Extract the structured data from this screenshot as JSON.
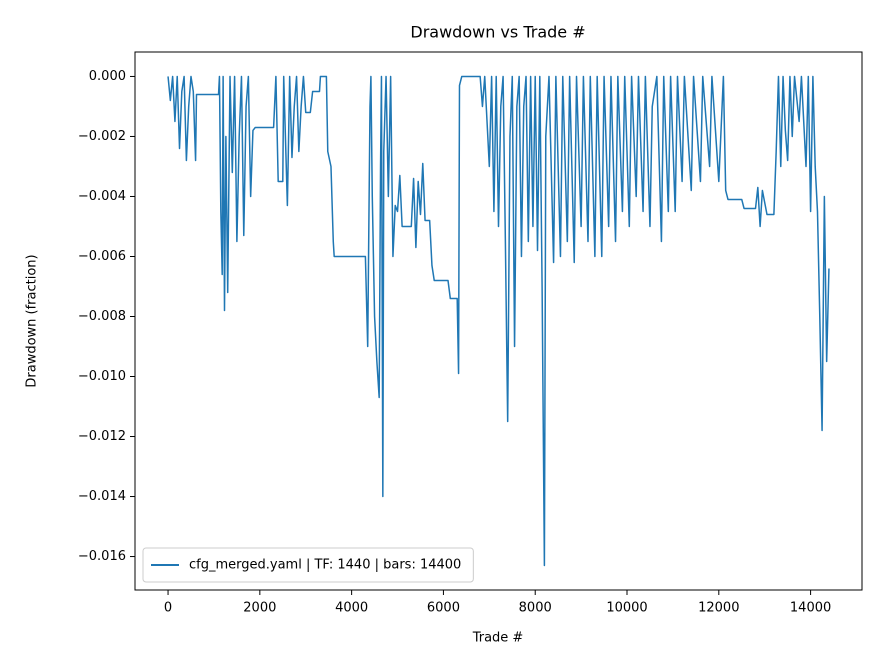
{
  "chart_data": {
    "type": "line",
    "title": "Drawdown vs Trade #",
    "xlabel": "Trade #",
    "ylabel": "Drawdown (fraction)",
    "x": [
      0,
      50,
      100,
      150,
      200,
      250,
      300,
      350,
      400,
      450,
      500,
      550,
      600,
      620,
      1100,
      1120,
      1150,
      1180,
      1200,
      1230,
      1260,
      1300,
      1350,
      1400,
      1450,
      1500,
      1550,
      1600,
      1650,
      1700,
      1750,
      1800,
      1850,
      1900,
      2300,
      2350,
      2400,
      2500,
      2520,
      2600,
      2650,
      2700,
      2750,
      2800,
      2850,
      2900,
      2950,
      3000,
      3100,
      3150,
      3300,
      3320,
      3450,
      3480,
      3550,
      3600,
      3620,
      4300,
      4350,
      4400,
      4420,
      4450,
      4500,
      4550,
      4600,
      4630,
      4650,
      4680,
      4700,
      4750,
      4800,
      4850,
      4900,
      4950,
      5000,
      5050,
      5100,
      5300,
      5350,
      5400,
      5450,
      5500,
      5550,
      5600,
      5700,
      5750,
      5800,
      6100,
      6150,
      6300,
      6330,
      6350,
      6400,
      6800,
      6850,
      6900,
      7000,
      7050,
      7100,
      7150,
      7200,
      7250,
      7300,
      7350,
      7400,
      7450,
      7500,
      7550,
      7600,
      7650,
      7700,
      7750,
      7800,
      7850,
      7900,
      7950,
      8000,
      8050,
      8100,
      8150,
      8200,
      8230,
      8300,
      8400,
      8450,
      8550,
      8600,
      8700,
      8750,
      8850,
      8900,
      9000,
      9050,
      9150,
      9200,
      9300,
      9350,
      9450,
      9500,
      9600,
      9650,
      9750,
      9800,
      9900,
      9950,
      10050,
      10100,
      10200,
      10250,
      10350,
      10400,
      10500,
      10550,
      10650,
      10750,
      10800,
      10900,
      10950,
      11050,
      11100,
      11200,
      11250,
      11400,
      11450,
      11600,
      11650,
      11800,
      11850,
      12000,
      12100,
      12150,
      12200,
      12500,
      12550,
      12800,
      12850,
      12900,
      12950,
      13050,
      13200,
      13250,
      13300,
      13350,
      13400,
      13450,
      13500,
      13550,
      13600,
      13650,
      13750,
      13800,
      13900,
      13950,
      14000,
      14050,
      14100,
      14150,
      14200,
      14250,
      14300,
      14350,
      14400
    ],
    "series": [
      {
        "name": "cfg_merged.yaml | TF: 1440 | bars: 14400",
        "color": "#1f77b4",
        "values": [
          0,
          -0.0008,
          0,
          -0.0015,
          0,
          -0.0024,
          -0.0005,
          0,
          -0.0028,
          -0.001,
          0,
          -0.0005,
          -0.0028,
          -0.0006,
          -0.0006,
          0,
          -0.0045,
          -0.0066,
          0,
          -0.0078,
          -0.002,
          -0.0072,
          0,
          -0.0032,
          0,
          -0.0055,
          -0.002,
          0,
          -0.0053,
          -0.001,
          0,
          -0.004,
          -0.0018,
          -0.0017,
          -0.0017,
          0,
          -0.0035,
          -0.0035,
          0,
          -0.0043,
          0,
          -0.0027,
          -0.001,
          0,
          -0.0025,
          -0.001,
          0,
          -0.0012,
          -0.0012,
          -0.0005,
          -0.0005,
          0,
          0,
          -0.0025,
          -0.003,
          -0.0055,
          -0.006,
          -0.006,
          -0.009,
          -0.001,
          0,
          -0.004,
          -0.008,
          -0.0095,
          -0.0107,
          -0.003,
          0,
          -0.014,
          -0.0025,
          0,
          -0.004,
          0,
          -0.006,
          -0.0043,
          -0.0045,
          -0.0033,
          -0.005,
          -0.005,
          -0.0034,
          -0.0057,
          -0.0035,
          -0.0046,
          -0.0029,
          -0.0048,
          -0.0048,
          -0.0063,
          -0.0068,
          -0.0068,
          -0.0074,
          -0.0074,
          -0.0099,
          -0.0003,
          0,
          0,
          -0.001,
          0,
          -0.003,
          0,
          -0.0045,
          0,
          -0.005,
          -0.001,
          0,
          -0.0055,
          -0.0115,
          -0.002,
          0,
          -0.009,
          -0.001,
          0,
          -0.006,
          -0.001,
          0,
          -0.0055,
          0,
          -0.005,
          0,
          -0.0058,
          0,
          -0.007,
          -0.0163,
          -0.002,
          0,
          -0.0062,
          0,
          -0.006,
          0,
          -0.0055,
          0,
          -0.0062,
          0,
          -0.005,
          0,
          -0.0055,
          0,
          -0.006,
          0,
          -0.006,
          0,
          -0.005,
          0,
          -0.0055,
          0,
          -0.0045,
          0,
          -0.005,
          0,
          -0.004,
          0,
          -0.0045,
          0,
          -0.005,
          -0.001,
          0,
          -0.0055,
          0,
          -0.0045,
          0,
          -0.0045,
          0,
          -0.0035,
          0,
          -0.0038,
          0,
          -0.0035,
          0,
          -0.003,
          0,
          -0.0035,
          0,
          -0.0038,
          -0.0041,
          -0.0041,
          -0.0044,
          -0.0044,
          -0.0037,
          -0.005,
          -0.0038,
          -0.0046,
          -0.0046,
          -0.0025,
          0,
          -0.003,
          0,
          -0.0018,
          -0.0028,
          0,
          -0.002,
          0,
          -0.0015,
          0,
          -0.003,
          0,
          -0.0045,
          0,
          -0.003,
          -0.0045,
          -0.008,
          -0.0118,
          -0.004,
          -0.0095,
          -0.0064
        ]
      }
    ],
    "xlim": [
      -720,
      15120
    ],
    "xticks": [
      0,
      2000,
      4000,
      6000,
      8000,
      10000,
      12000,
      14000
    ],
    "ylim": [
      -0.017115,
      0.000815
    ],
    "yticks": [
      {
        "value": 0,
        "label": "0.000"
      },
      {
        "value": -0.002,
        "label": "−0.002"
      },
      {
        "value": -0.004,
        "label": "−0.004"
      },
      {
        "value": -0.006,
        "label": "−0.006"
      },
      {
        "value": -0.008,
        "label": "−0.008"
      },
      {
        "value": -0.01,
        "label": "−0.010"
      },
      {
        "value": -0.012,
        "label": "−0.012"
      },
      {
        "value": -0.014,
        "label": "−0.014"
      },
      {
        "value": -0.016,
        "label": "−0.016"
      }
    ],
    "legend": "lower left"
  }
}
